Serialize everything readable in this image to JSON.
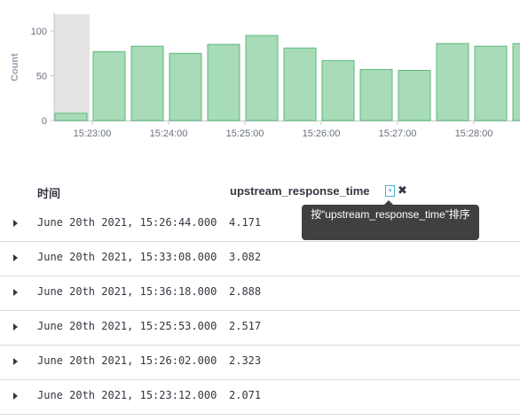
{
  "chart_data": {
    "type": "bar",
    "ylabel": "Count",
    "xlabel": "",
    "y_ticks": [
      "0",
      "50",
      "100"
    ],
    "ylim": [
      0,
      120
    ],
    "x_ticks": [
      "15:23:00",
      "15:24:00",
      "15:25:00",
      "15:26:00",
      "15:27:00",
      "15:28:00"
    ],
    "categories": [
      "15:22:30",
      "15:23:00",
      "15:23:30",
      "15:24:00",
      "15:24:30",
      "15:25:00",
      "15:25:30",
      "15:26:00",
      "15:26:30",
      "15:27:00",
      "15:27:30",
      "15:28:00",
      "15:28:30"
    ],
    "values": [
      8,
      77,
      83,
      75,
      85,
      95,
      81,
      67,
      57,
      56,
      86,
      83,
      86
    ],
    "bar_color": "#a8dbb8",
    "bar_edge_color": "#5cb87a",
    "grid": false
  },
  "table": {
    "columns": {
      "time": "时间",
      "upstream": "upstream_response_time"
    },
    "sort_icon": "sort-icon",
    "remove_icon": "remove-column-icon",
    "rows": [
      {
        "time": "June 20th 2021, 15:26:44.000",
        "value": "4.171"
      },
      {
        "time": "June 20th 2021, 15:33:08.000",
        "value": "3.082"
      },
      {
        "time": "June 20th 2021, 15:36:18.000",
        "value": "2.888"
      },
      {
        "time": "June 20th 2021, 15:25:53.000",
        "value": "2.517"
      },
      {
        "time": "June 20th 2021, 15:26:02.000",
        "value": "2.323"
      },
      {
        "time": "June 20th 2021, 15:23:12.000",
        "value": "2.071"
      }
    ]
  },
  "tooltip": {
    "text": "按“upstream_response_time”排序"
  },
  "colors": {
    "tooltip_bg": "#404040",
    "border": "#d3dae6",
    "accent": "#4ab0d9"
  }
}
